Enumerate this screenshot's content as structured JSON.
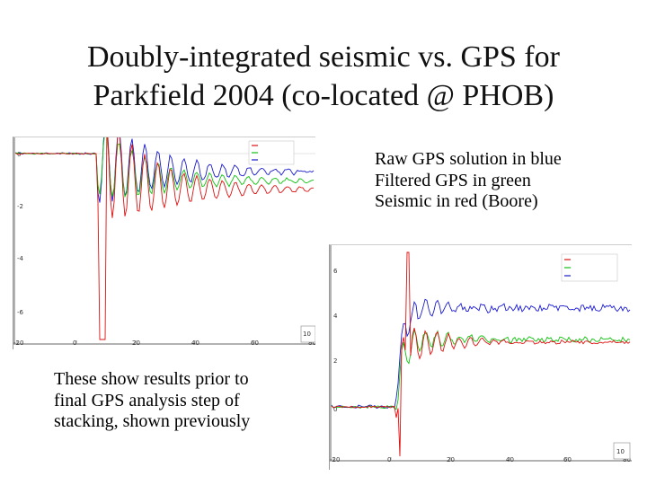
{
  "title": {
    "line1": "Doubly-integrated seismic vs. GPS for",
    "line2": "Parkfield 2004 (co-located @ PHOB)"
  },
  "legend_caption": {
    "line1": "Raw GPS solution in blue",
    "line2": "Filtered GPS in green",
    "line3": "Seismic in red (Boore)"
  },
  "note_caption": {
    "line1": "These show results prior to",
    "line2": "final GPS analysis step of",
    "line3": "stacking, shown previously"
  },
  "colors": {
    "raw_gps": "#1a1acc",
    "filtered_gps": "#10c010",
    "seismic": "#dd1111"
  },
  "plot_a": {
    "x_ticks": [
      "-20",
      "0",
      "20",
      "40",
      "60",
      "80"
    ],
    "y_ticks": [
      "0",
      "-2",
      "-4",
      "-6"
    ],
    "axis_badge": "10"
  },
  "plot_b": {
    "x_ticks": [
      "-20",
      "0",
      "20",
      "40",
      "60",
      "80"
    ],
    "y_ticks": [
      "6",
      "4",
      "2",
      "0"
    ],
    "axis_badge": "10"
  }
}
